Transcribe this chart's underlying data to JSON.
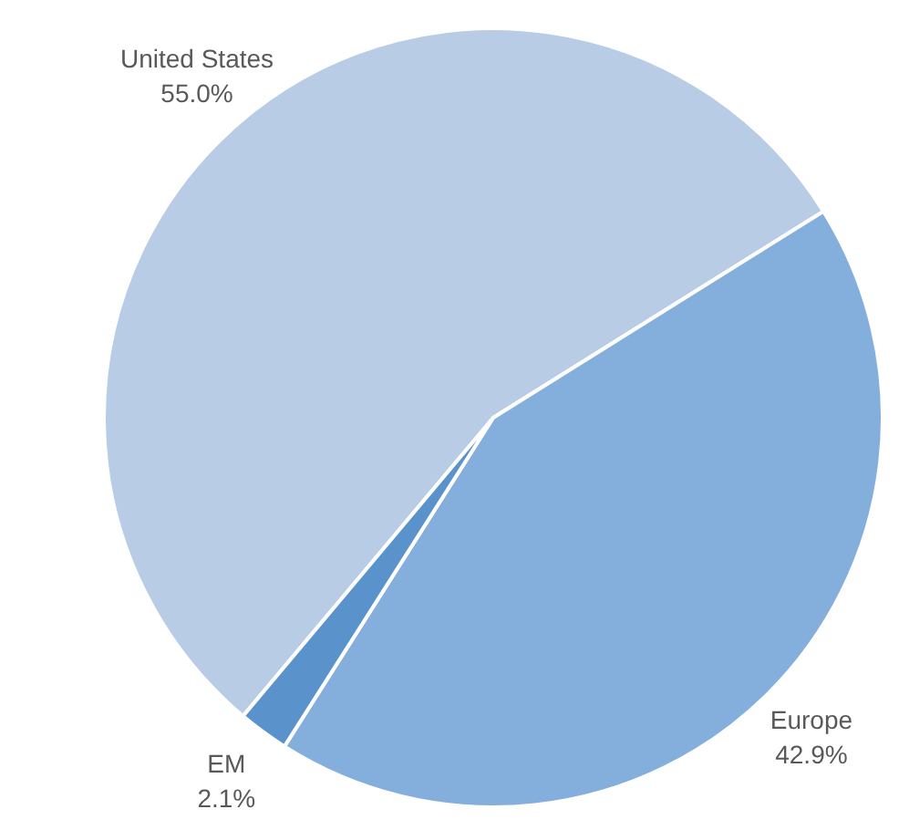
{
  "chart_data": {
    "type": "pie",
    "categories": [
      "United States",
      "Europe",
      "EM"
    ],
    "values": [
      55.0,
      42.9,
      2.1
    ],
    "colors": [
      "#b8cce6",
      "#84aedb",
      "#5a93cb"
    ],
    "value_labels": [
      "55.0%",
      "42.9%",
      "2.1%"
    ],
    "legend": false
  }
}
